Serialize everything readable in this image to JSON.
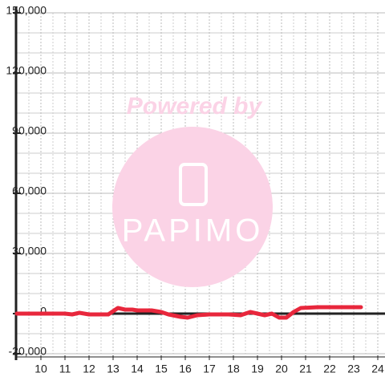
{
  "chart_data": {
    "type": "line",
    "watermark": [
      "Powered by",
      "PAPIMO"
    ],
    "x": [
      9,
      11,
      11.3,
      11.6,
      12,
      12.8,
      13.2,
      13.5,
      13.8,
      14,
      14.6,
      15,
      15.3,
      15.8,
      16.1,
      16.5,
      17,
      17.8,
      18.3,
      18.7,
      19,
      19.3,
      19.6,
      19.9,
      20.2,
      20.5,
      20.8,
      21.5,
      23.3
    ],
    "series": [
      {
        "color": "#e8273c",
        "values": [
          0,
          0,
          -400,
          400,
          -400,
          -400,
          2800,
          2000,
          2000,
          1600,
          1600,
          800,
          -400,
          -1600,
          -2000,
          -800,
          -400,
          -400,
          -800,
          800,
          0,
          -800,
          0,
          -2000,
          -2000,
          800,
          2800,
          3200,
          3200
        ]
      }
    ],
    "xlim": [
      9,
      24.3
    ],
    "ylim": [
      -20000,
      150000
    ],
    "xticks": [
      10,
      11,
      12,
      13,
      14,
      15,
      16,
      17,
      18,
      19,
      20,
      21,
      22,
      23,
      24
    ],
    "yticks": [
      {
        "value": -20000,
        "label": "-20,000"
      },
      0,
      {
        "value": 30000,
        "label": "30,000"
      },
      {
        "value": 60000,
        "label": "60,000"
      },
      {
        "value": 90000,
        "label": "90,000"
      },
      {
        "value": 120000,
        "label": "120,000"
      },
      {
        "value": 150000,
        "label": "150,000"
      }
    ],
    "grid": true
  }
}
